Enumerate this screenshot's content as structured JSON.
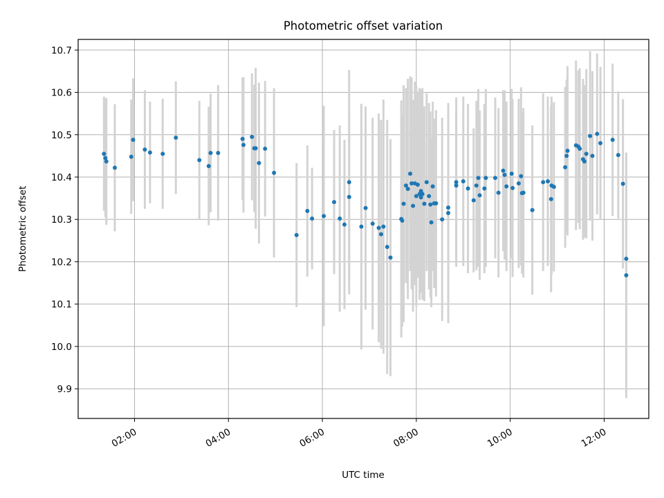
{
  "chart_data": {
    "type": "scatter",
    "title": "Photometric offset variation",
    "xlabel": "UTC time",
    "ylabel": "Photometric offset",
    "x_unit": "hours UTC",
    "xlim": [
      0.8,
      12.95
    ],
    "ylim": [
      9.83,
      10.725
    ],
    "xticks": [
      {
        "value": 2,
        "label": "02:00"
      },
      {
        "value": 4,
        "label": "04:00"
      },
      {
        "value": 6,
        "label": "06:00"
      },
      {
        "value": 8,
        "label": "08:00"
      },
      {
        "value": 10,
        "label": "10:00"
      },
      {
        "value": 12,
        "label": "12:00"
      }
    ],
    "yticks": [
      {
        "value": 9.9,
        "label": "9.9"
      },
      {
        "value": 10.0,
        "label": "10.0"
      },
      {
        "value": 10.1,
        "label": "10.1"
      },
      {
        "value": 10.2,
        "label": "10.2"
      },
      {
        "value": 10.3,
        "label": "10.3"
      },
      {
        "value": 10.4,
        "label": "10.4"
      },
      {
        "value": 10.5,
        "label": "10.5"
      },
      {
        "value": 10.6,
        "label": "10.6"
      },
      {
        "value": 10.7,
        "label": "10.7"
      }
    ],
    "grid": true,
    "marker_color": "#1f77b4",
    "errorbar_color": "#d3d3d3",
    "points": [
      [
        1.35,
        10.455,
        0.135
      ],
      [
        1.38,
        10.445,
        0.14
      ],
      [
        1.4,
        10.437,
        0.15
      ],
      [
        1.58,
        10.422,
        0.15
      ],
      [
        1.93,
        10.448,
        0.135
      ],
      [
        1.97,
        10.488,
        0.145
      ],
      [
        2.22,
        10.465,
        0.14
      ],
      [
        2.33,
        10.458,
        0.12
      ],
      [
        2.6,
        10.455,
        0.13
      ],
      [
        2.88,
        10.493,
        0.133
      ],
      [
        3.38,
        10.44,
        0.14
      ],
      [
        3.58,
        10.426,
        0.14
      ],
      [
        3.62,
        10.457,
        0.14
      ],
      [
        3.78,
        10.457,
        0.16
      ],
      [
        4.3,
        10.49,
        0.145
      ],
      [
        4.32,
        10.476,
        0.16
      ],
      [
        4.5,
        10.495,
        0.15
      ],
      [
        4.55,
        10.468,
        0.15
      ],
      [
        4.58,
        10.468,
        0.19
      ],
      [
        4.65,
        10.433,
        0.19
      ],
      [
        4.78,
        10.467,
        0.16
      ],
      [
        4.97,
        10.41,
        0.2
      ],
      [
        5.45,
        10.263,
        0.17
      ],
      [
        5.68,
        10.32,
        0.155
      ],
      [
        5.78,
        10.302,
        0.12
      ],
      [
        6.03,
        10.308,
        0.26
      ],
      [
        6.25,
        10.341,
        0.17
      ],
      [
        6.37,
        10.302,
        0.22
      ],
      [
        6.47,
        10.288,
        0.2
      ],
      [
        6.57,
        10.353,
        0.2
      ],
      [
        6.57,
        10.388,
        0.265
      ],
      [
        6.83,
        10.283,
        0.29
      ],
      [
        6.92,
        10.327,
        0.24
      ],
      [
        7.07,
        10.29,
        0.25
      ],
      [
        7.2,
        10.28,
        0.27
      ],
      [
        7.25,
        10.265,
        0.27
      ],
      [
        7.3,
        10.283,
        0.3
      ],
      [
        7.38,
        10.235,
        0.3
      ],
      [
        7.45,
        10.21,
        0.28
      ],
      [
        7.68,
        10.301,
        0.28
      ],
      [
        7.7,
        10.297,
        0.25
      ],
      [
        7.73,
        10.337,
        0.28
      ],
      [
        7.78,
        10.38,
        0.23
      ],
      [
        7.82,
        10.372,
        0.26
      ],
      [
        7.87,
        10.408,
        0.23
      ],
      [
        7.9,
        10.385,
        0.25
      ],
      [
        7.93,
        10.332,
        0.25
      ],
      [
        7.97,
        10.385,
        0.24
      ],
      [
        8.0,
        10.355,
        0.26
      ],
      [
        8.03,
        10.382,
        0.22
      ],
      [
        8.07,
        10.36,
        0.25
      ],
      [
        8.1,
        10.352,
        0.2
      ],
      [
        8.1,
        10.367,
        0.24
      ],
      [
        8.13,
        10.36,
        0.25
      ],
      [
        8.17,
        10.337,
        0.23
      ],
      [
        8.22,
        10.388,
        0.21
      ],
      [
        8.27,
        10.355,
        0.22
      ],
      [
        8.3,
        10.335,
        0.22
      ],
      [
        8.32,
        10.293,
        0.2
      ],
      [
        8.35,
        10.378,
        0.2
      ],
      [
        8.38,
        10.338,
        0.2
      ],
      [
        8.42,
        10.338,
        0.22
      ],
      [
        8.55,
        10.3,
        0.24
      ],
      [
        8.68,
        10.328,
        0.22
      ],
      [
        8.68,
        10.315,
        0.26
      ],
      [
        8.85,
        10.388,
        0.2
      ],
      [
        8.85,
        10.38,
        0.18
      ],
      [
        9.0,
        10.39,
        0.2
      ],
      [
        9.1,
        10.373,
        0.2
      ],
      [
        9.22,
        10.345,
        0.17
      ],
      [
        9.28,
        10.38,
        0.2
      ],
      [
        9.32,
        10.398,
        0.21
      ],
      [
        9.35,
        10.357,
        0.2
      ],
      [
        9.45,
        10.373,
        0.2
      ],
      [
        9.48,
        10.398,
        0.21
      ],
      [
        9.68,
        10.398,
        0.19
      ],
      [
        9.75,
        10.363,
        0.2
      ],
      [
        9.85,
        10.415,
        0.19
      ],
      [
        9.88,
        10.405,
        0.2
      ],
      [
        9.92,
        10.378,
        0.2
      ],
      [
        10.03,
        10.408,
        0.2
      ],
      [
        10.05,
        10.374,
        0.21
      ],
      [
        10.18,
        10.385,
        0.2
      ],
      [
        10.23,
        10.402,
        0.21
      ],
      [
        10.25,
        10.362,
        0.19
      ],
      [
        10.28,
        10.363,
        0.2
      ],
      [
        10.47,
        10.322,
        0.2
      ],
      [
        10.7,
        10.388,
        0.21
      ],
      [
        10.8,
        10.39,
        0.2
      ],
      [
        10.87,
        10.348,
        0.22
      ],
      [
        10.88,
        10.38,
        0.21
      ],
      [
        10.93,
        10.377,
        0.2
      ],
      [
        11.17,
        10.423,
        0.19
      ],
      [
        11.2,
        10.45,
        0.18
      ],
      [
        11.22,
        10.462,
        0.2
      ],
      [
        11.4,
        10.475,
        0.2
      ],
      [
        11.45,
        10.472,
        0.18
      ],
      [
        11.48,
        10.467,
        0.19
      ],
      [
        11.55,
        10.442,
        0.19
      ],
      [
        11.58,
        10.437,
        0.18
      ],
      [
        11.62,
        10.455,
        0.2
      ],
      [
        11.7,
        10.497,
        0.2
      ],
      [
        11.75,
        10.45,
        0.2
      ],
      [
        11.85,
        10.502,
        0.19
      ],
      [
        11.92,
        10.48,
        0.18
      ],
      [
        12.18,
        10.488,
        0.18
      ],
      [
        12.3,
        10.452,
        0.15
      ],
      [
        12.4,
        10.384,
        0.2
      ],
      [
        12.47,
        10.207,
        0.25
      ],
      [
        12.47,
        10.168,
        0.29
      ]
    ]
  }
}
